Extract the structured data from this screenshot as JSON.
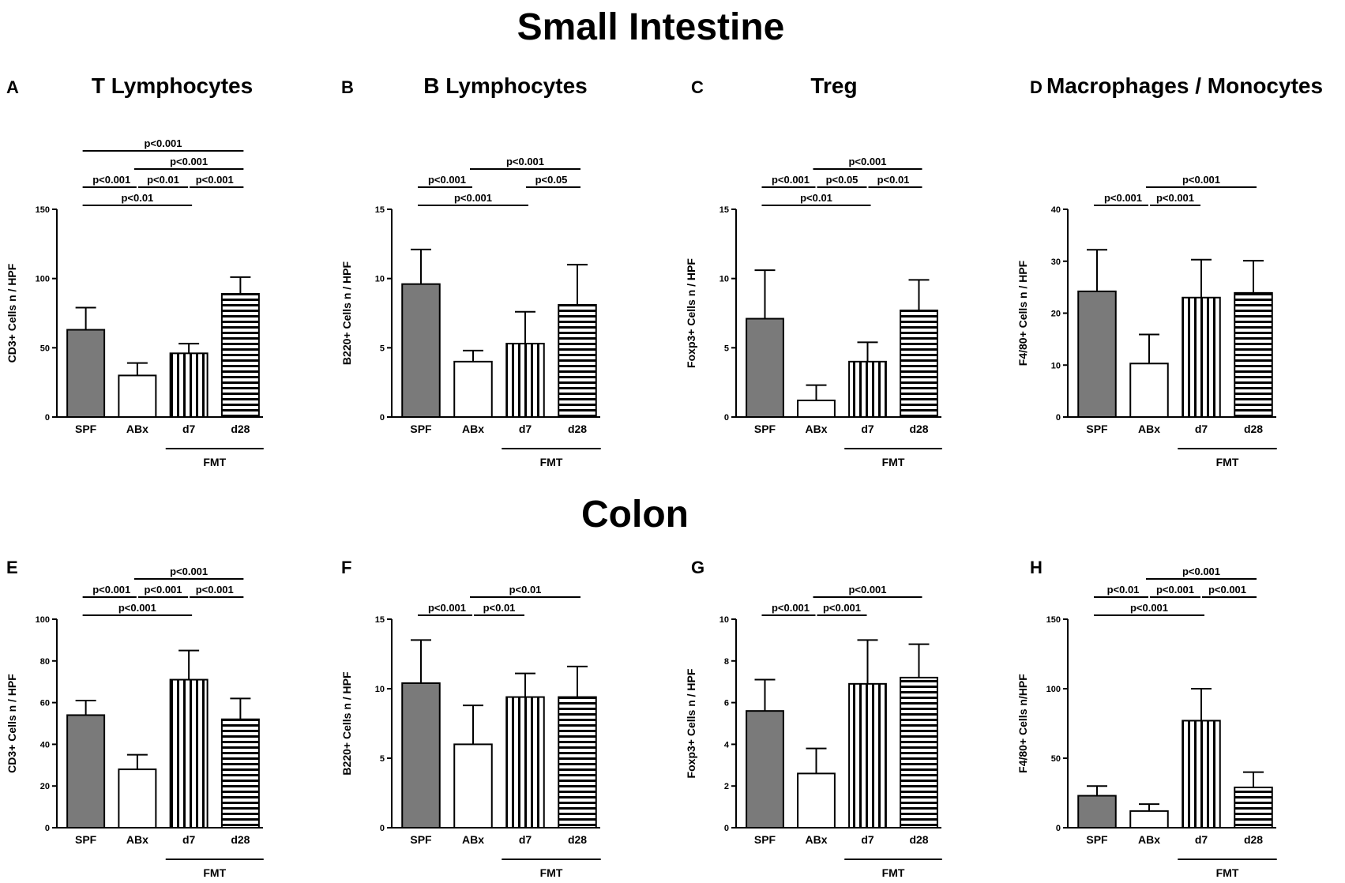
{
  "titles": {
    "small_intestine": "Small Intestine",
    "colon": "Colon"
  },
  "group_label": "FMT",
  "colors": {
    "solid_fill": "#7a7a7a",
    "stroke": "#000000",
    "background": "#ffffff"
  },
  "chart_data": [
    {
      "panel": "A",
      "type": "bar",
      "title": "T Lymphocytes",
      "section": "Small Intestine",
      "ylabel": "CD3+ Cells n / HPF",
      "ylim": [
        0,
        150
      ],
      "yticks": [
        0,
        50,
        100,
        150
      ],
      "categories": [
        "SPF",
        "ABx",
        "d7",
        "d28"
      ],
      "patterns": [
        "solid",
        "white",
        "vertical",
        "horizontal"
      ],
      "values": [
        63,
        30,
        46,
        89
      ],
      "errors": [
        16,
        9,
        7,
        12
      ],
      "fmt_group": [
        "d7",
        "d28"
      ],
      "comparisons": [
        {
          "from": 0,
          "to": 3,
          "label": "p<0.001"
        },
        {
          "from": 1,
          "to": 3,
          "label": "p<0.001"
        },
        {
          "from": 0,
          "to": 1,
          "label": "p<0.001"
        },
        {
          "from": 1,
          "to": 2,
          "label": "p<0.01"
        },
        {
          "from": 2,
          "to": 3,
          "label": "p<0.001"
        },
        {
          "from": 0,
          "to": 2,
          "label": "p<0.01"
        }
      ]
    },
    {
      "panel": "B",
      "type": "bar",
      "title": "B Lymphocytes",
      "section": "Small Intestine",
      "ylabel": "B220+ Cells n / HPF",
      "ylim": [
        0,
        15
      ],
      "yticks": [
        0,
        5,
        10,
        15
      ],
      "categories": [
        "SPF",
        "ABx",
        "d7",
        "d28"
      ],
      "patterns": [
        "solid",
        "white",
        "vertical",
        "horizontal"
      ],
      "values": [
        9.6,
        4.0,
        5.3,
        8.1
      ],
      "errors": [
        2.5,
        0.8,
        2.3,
        2.9
      ],
      "fmt_group": [
        "d7",
        "d28"
      ],
      "comparisons": [
        {
          "from": 0,
          "to": 1,
          "label": "p<0.001"
        },
        {
          "from": 1,
          "to": 3,
          "label": "p<0.001"
        },
        {
          "from": 0,
          "to": 2,
          "label": "p<0.001"
        },
        {
          "from": 2,
          "to": 3,
          "label": "p<0.05"
        }
      ]
    },
    {
      "panel": "C",
      "type": "bar",
      "title": "Treg",
      "section": "Small Intestine",
      "ylabel": "Foxp3+ Cells n / HPF",
      "ylim": [
        0,
        15
      ],
      "yticks": [
        0,
        5,
        10,
        15
      ],
      "categories": [
        "SPF",
        "ABx",
        "d7",
        "d28"
      ],
      "patterns": [
        "solid",
        "white",
        "vertical",
        "horizontal"
      ],
      "values": [
        7.1,
        1.2,
        4.0,
        7.7
      ],
      "errors": [
        3.5,
        1.1,
        1.4,
        2.2
      ],
      "fmt_group": [
        "d7",
        "d28"
      ],
      "comparisons": [
        {
          "from": 1,
          "to": 3,
          "label": "p<0.001"
        },
        {
          "from": 0,
          "to": 1,
          "label": "p<0.001"
        },
        {
          "from": 1,
          "to": 2,
          "label": "p<0.05"
        },
        {
          "from": 2,
          "to": 3,
          "label": "p<0.01"
        },
        {
          "from": 0,
          "to": 2,
          "label": "p<0.01"
        }
      ]
    },
    {
      "panel": "D",
      "type": "bar",
      "title": "Macrophages / Monocytes",
      "section": "Small Intestine",
      "ylabel": "F4/80+ Cells n / HPF",
      "ylim": [
        0,
        40
      ],
      "yticks": [
        0,
        10,
        20,
        30,
        40
      ],
      "categories": [
        "SPF",
        "ABx",
        "d7",
        "d28"
      ],
      "patterns": [
        "solid",
        "white",
        "vertical",
        "horizontal"
      ],
      "values": [
        24.2,
        10.3,
        23.0,
        23.9
      ],
      "errors": [
        8.0,
        5.6,
        7.3,
        6.2
      ],
      "fmt_group": [
        "d7",
        "d28"
      ],
      "comparisons": [
        {
          "from": 0,
          "to": 1,
          "label": "p<0.001"
        },
        {
          "from": 1,
          "to": 3,
          "label": "p<0.001"
        },
        {
          "from": 1,
          "to": 2,
          "label": "p<0.001"
        }
      ]
    },
    {
      "panel": "E",
      "type": "bar",
      "title": "",
      "section": "Colon",
      "ylabel": "CD3+ Cells n / HPF",
      "ylim": [
        0,
        100
      ],
      "yticks": [
        0,
        20,
        40,
        60,
        80,
        100
      ],
      "categories": [
        "SPF",
        "ABx",
        "d7",
        "d28"
      ],
      "patterns": [
        "solid",
        "white",
        "vertical",
        "horizontal"
      ],
      "values": [
        54,
        28,
        71,
        52
      ],
      "errors": [
        7,
        7,
        14,
        10
      ],
      "fmt_group": [
        "d7",
        "d28"
      ],
      "comparisons": [
        {
          "from": 1,
          "to": 3,
          "label": "p<0.001"
        },
        {
          "from": 0,
          "to": 1,
          "label": "p<0.001"
        },
        {
          "from": 1,
          "to": 2,
          "label": "p<0.001"
        },
        {
          "from": 2,
          "to": 3,
          "label": "p<0.001"
        },
        {
          "from": 0,
          "to": 2,
          "label": "p<0.001"
        }
      ]
    },
    {
      "panel": "F",
      "type": "bar",
      "title": "",
      "section": "Colon",
      "ylabel": "B220+ Cells n / HPF",
      "ylim": [
        0,
        15
      ],
      "yticks": [
        0,
        5,
        10,
        15
      ],
      "categories": [
        "SPF",
        "ABx",
        "d7",
        "d28"
      ],
      "patterns": [
        "solid",
        "white",
        "vertical",
        "horizontal"
      ],
      "values": [
        10.4,
        6.0,
        9.4,
        9.4
      ],
      "errors": [
        3.1,
        2.8,
        1.7,
        2.2
      ],
      "fmt_group": [
        "d7",
        "d28"
      ],
      "comparisons": [
        {
          "from": 1,
          "to": 3,
          "label": "p<0.01"
        },
        {
          "from": 0,
          "to": 1,
          "label": "p<0.001"
        },
        {
          "from": 1,
          "to": 2,
          "label": "p<0.01"
        }
      ]
    },
    {
      "panel": "G",
      "type": "bar",
      "title": "",
      "section": "Colon",
      "ylabel": "Foxp3+ Cells n / HPF",
      "ylim": [
        0,
        10
      ],
      "yticks": [
        0,
        2,
        4,
        6,
        8,
        10
      ],
      "categories": [
        "SPF",
        "ABx",
        "d7",
        "d28"
      ],
      "patterns": [
        "solid",
        "white",
        "vertical",
        "horizontal"
      ],
      "values": [
        5.6,
        2.6,
        6.9,
        7.2
      ],
      "errors": [
        1.5,
        1.2,
        2.1,
        1.6
      ],
      "fmt_group": [
        "d7",
        "d28"
      ],
      "comparisons": [
        {
          "from": 1,
          "to": 3,
          "label": "p<0.001"
        },
        {
          "from": 0,
          "to": 1,
          "label": "p<0.001"
        },
        {
          "from": 1,
          "to": 2,
          "label": "p<0.001"
        }
      ]
    },
    {
      "panel": "H",
      "type": "bar",
      "title": "",
      "section": "Colon",
      "ylabel": "F4/80+ Cells n/HPF",
      "ylim": [
        0,
        150
      ],
      "yticks": [
        0,
        50,
        100,
        150
      ],
      "categories": [
        "SPF",
        "ABx",
        "d7",
        "d28"
      ],
      "patterns": [
        "solid",
        "white",
        "vertical",
        "horizontal"
      ],
      "values": [
        23,
        12,
        77,
        29
      ],
      "errors": [
        7,
        5,
        23,
        11
      ],
      "fmt_group": [
        "d7",
        "d28"
      ],
      "comparisons": [
        {
          "from": 1,
          "to": 3,
          "label": "p<0.001"
        },
        {
          "from": 0,
          "to": 1,
          "label": "p<0.01"
        },
        {
          "from": 1,
          "to": 2,
          "label": "p<0.001"
        },
        {
          "from": 2,
          "to": 3,
          "label": "p<0.001"
        },
        {
          "from": 0,
          "to": 2,
          "label": "p<0.001"
        }
      ]
    }
  ]
}
